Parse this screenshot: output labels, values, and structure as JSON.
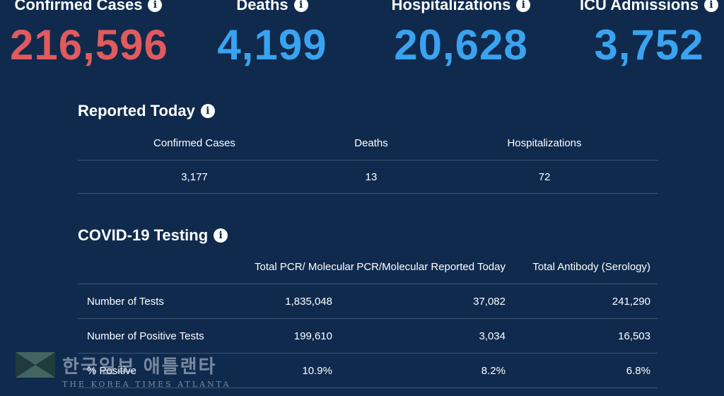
{
  "stats": [
    {
      "title": "Confirmed Cases",
      "value": "216,596",
      "color": "#e05a5e"
    },
    {
      "title": "Deaths",
      "value": "4,199",
      "color": "#3aa3f0"
    },
    {
      "title": "Hospitalizations",
      "value": "20,628",
      "color": "#3aa3f0"
    },
    {
      "title": "ICU Admissions",
      "value": "3,752",
      "color": "#3aa3f0"
    }
  ],
  "info_icon_glyph": "i",
  "reported_today": {
    "title": "Reported Today",
    "headers": [
      "Confirmed Cases",
      "Deaths",
      "Hospitalizations"
    ],
    "values": [
      "3,177",
      "13",
      "72"
    ]
  },
  "testing": {
    "title": "COVID-19 Testing",
    "headers": [
      "",
      "Total PCR/ Molecular",
      "PCR/Molecular Reported Today",
      "Total Antibody (Serology)"
    ],
    "rows": [
      {
        "label": "Number of Tests",
        "cells": [
          "1,835,048",
          "37,082",
          "241,290"
        ]
      },
      {
        "label": "Number of Positive Tests",
        "cells": [
          "199,610",
          "3,034",
          "16,503"
        ]
      },
      {
        "label": "% Positive",
        "cells": [
          "10.9%",
          "8.2%",
          "6.8%"
        ]
      }
    ]
  },
  "watermark": {
    "korean": "한국일보 애틀랜타",
    "english": "THE KOREA TIMES ATLANTA"
  }
}
